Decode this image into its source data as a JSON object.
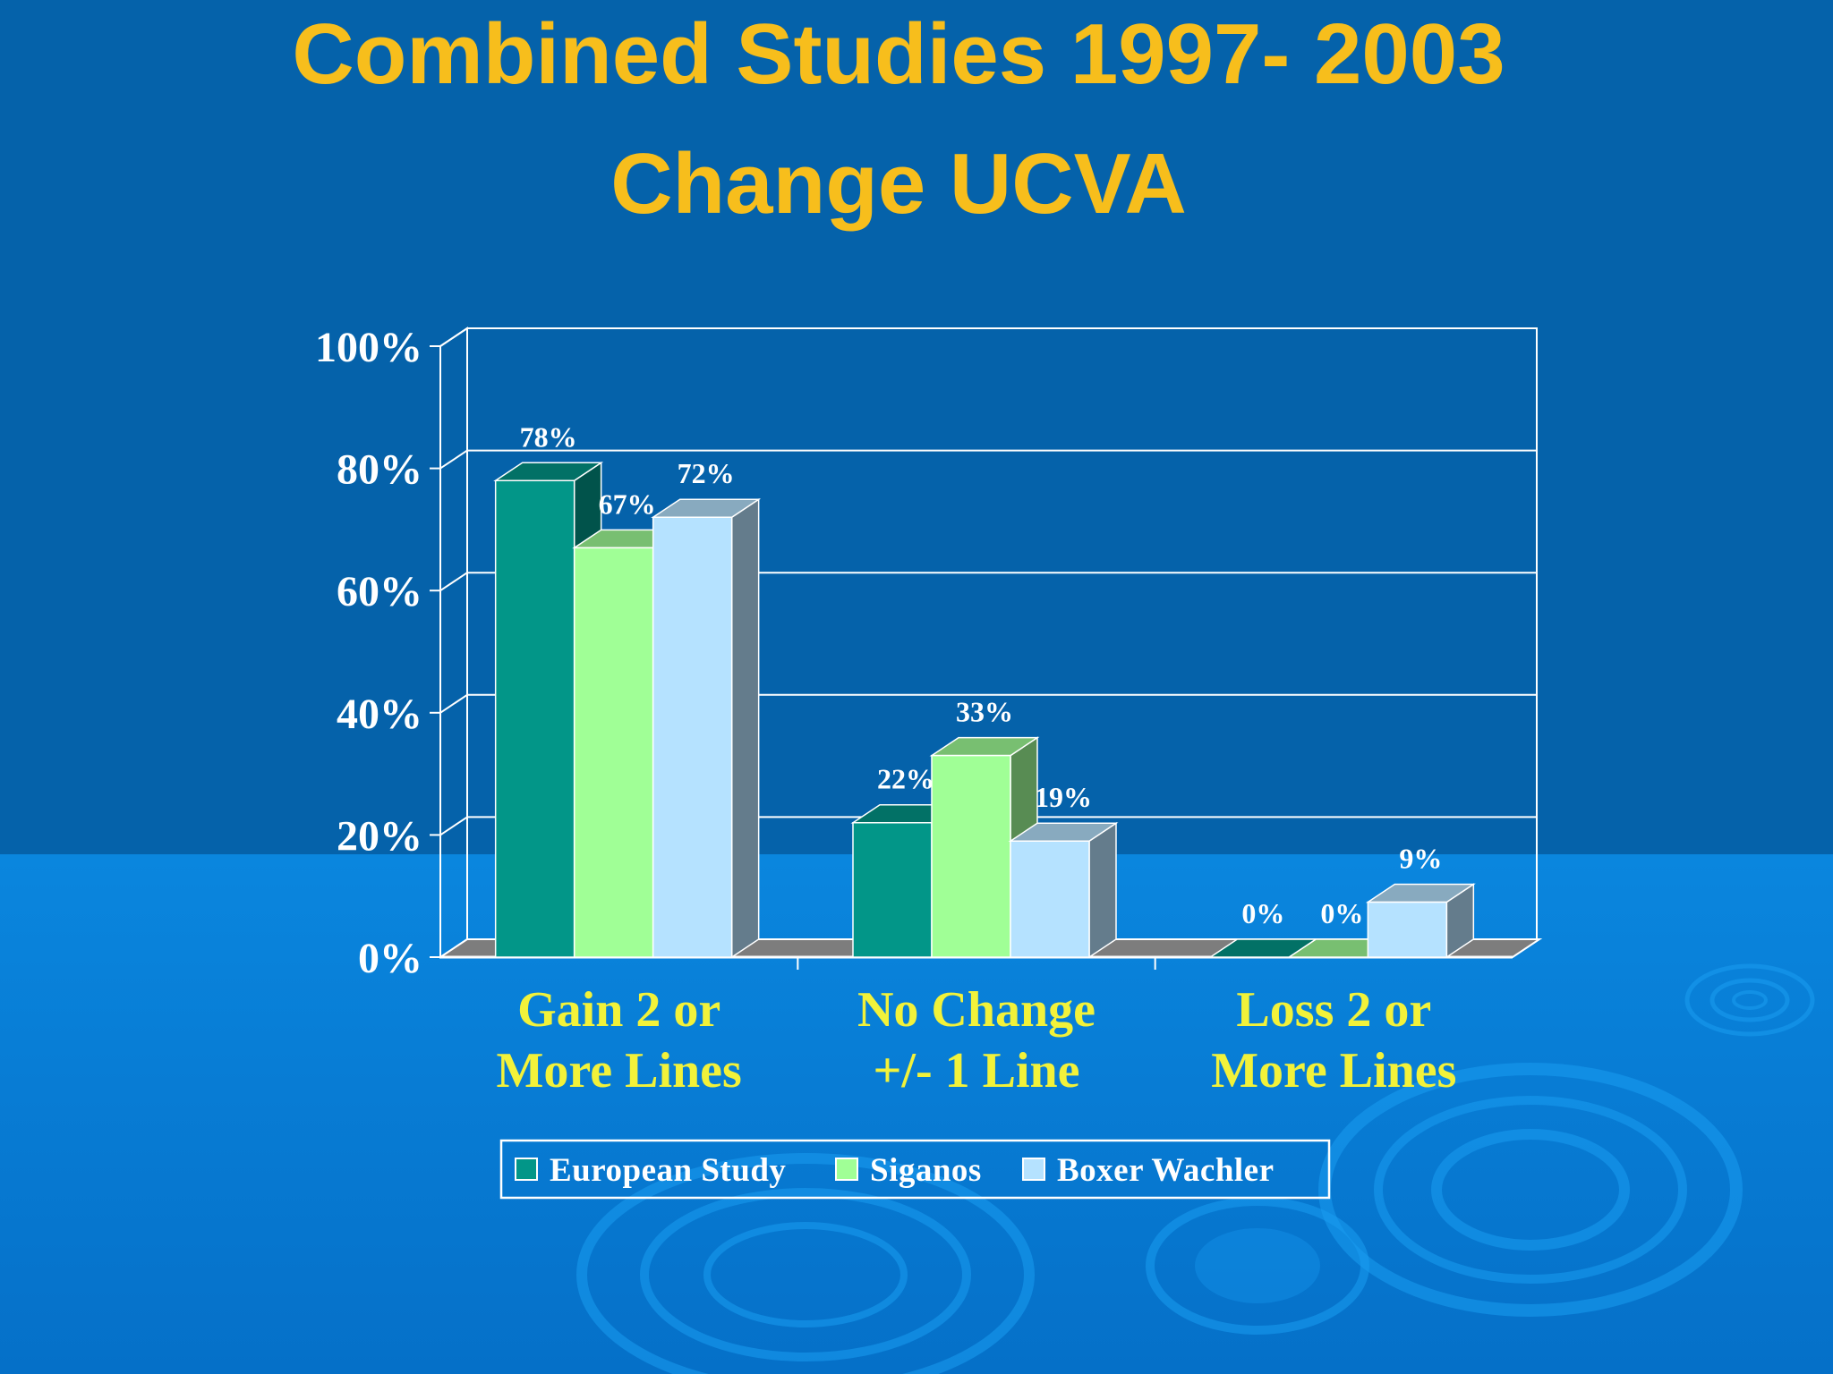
{
  "slide": {
    "title_line1": "Combined Studies 1997- 2003",
    "title_line2": "Change UCVA"
  },
  "colors": {
    "background": "#0561a9",
    "title": "#f7be1c",
    "category_labels": "#f2f23a",
    "series": [
      "#029688",
      "#a0ff96",
      "#b5e2ff"
    ]
  },
  "chart_data": {
    "type": "bar",
    "style": "3d-clustered-column",
    "categories": [
      [
        "Gain 2 or",
        "More Lines"
      ],
      [
        "No Change",
        "+/- 1 Line"
      ],
      [
        "Loss 2 or",
        "More Lines"
      ]
    ],
    "series": [
      {
        "name": "European Study",
        "values": [
          78,
          22,
          0
        ],
        "labels": [
          "78%",
          "22%",
          "0%"
        ]
      },
      {
        "name": "Siganos",
        "values": [
          67,
          33,
          0
        ],
        "labels": [
          "67%",
          "33%",
          "0%"
        ]
      },
      {
        "name": "Boxer Wachler",
        "values": [
          72,
          19,
          9
        ],
        "labels": [
          "72%",
          "19%",
          "9%"
        ]
      }
    ],
    "yticks": [
      "0%",
      "20%",
      "40%",
      "60%",
      "80%",
      "100%"
    ],
    "ylim": [
      0,
      100
    ],
    "grid": true,
    "legend_position": "bottom"
  }
}
